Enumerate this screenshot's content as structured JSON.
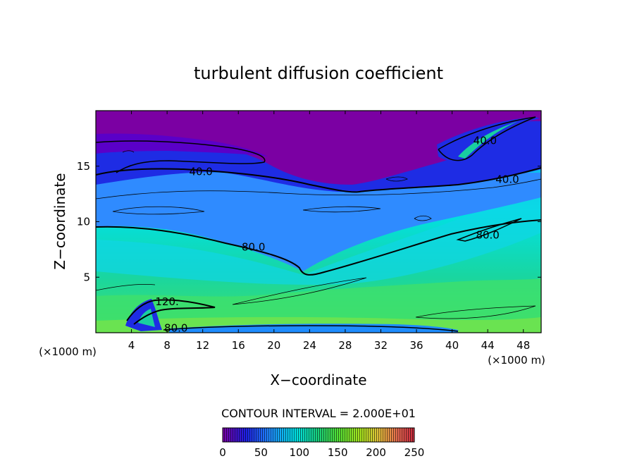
{
  "chart_data": {
    "type": "heatmap",
    "title": "turbulent diffusion coefficient",
    "xlabel": "X−coordinate",
    "ylabel": "Z−coordinate",
    "x_unit": "(×1000 m)",
    "y_unit": "(×1000 m)",
    "xlim": [
      0,
      50
    ],
    "ylim": [
      0,
      20
    ],
    "x_ticks": [
      4,
      8,
      12,
      16,
      20,
      24,
      28,
      32,
      36,
      40,
      44,
      48
    ],
    "y_ticks": [
      5,
      10,
      15
    ],
    "contour_interval_text": "CONTOUR INTERVAL = 2.000E+01",
    "colorbar": {
      "min": 0,
      "max": 250,
      "ticks": [
        0,
        50,
        100,
        150,
        200,
        250
      ],
      "colors": [
        "#7a00a6",
        "#1e1ee6",
        "#1e8cff",
        "#00e6e6",
        "#19d07a",
        "#64e632",
        "#b4e61e",
        "#e6c83c",
        "#e66450",
        "#c8283c"
      ]
    },
    "field_colors": {
      "purple": "#7b00a3",
      "blue": "#1e2ce4",
      "light_blue": "#2f8bff",
      "cyan": "#0fd6e6",
      "teal": "#19cfa0",
      "green": "#3ee06c",
      "lime": "#8ee63c"
    },
    "contour_labels": [
      {
        "text": "40.0",
        "x": 11.8,
        "z": 14.5
      },
      {
        "text": "40.0",
        "x": 46.2,
        "z": 13.8
      },
      {
        "text": "40.0",
        "x": 43.7,
        "z": 17.3
      },
      {
        "text": "80.0",
        "x": 17.7,
        "z": 7.7
      },
      {
        "text": "80.0",
        "x": 44.0,
        "z": 8.8
      },
      {
        "text": "120.",
        "x": 8.0,
        "z": 2.8
      },
      {
        "text": "80.0",
        "x": 9.0,
        "z": 0.4
      }
    ]
  }
}
